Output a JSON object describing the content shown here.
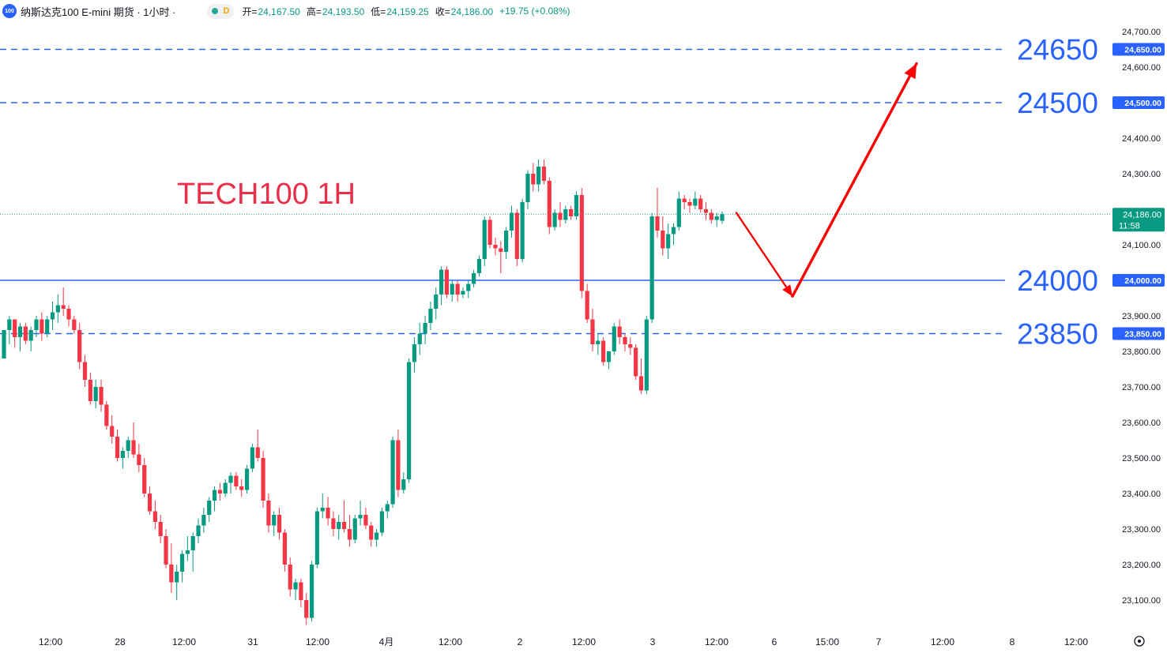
{
  "header": {
    "symbol_badge": "100",
    "symbol_title": "纳斯达克100 E-mini 期货 · 1小时 ·",
    "data_indicator": "D",
    "ohlc": [
      {
        "label": "开",
        "value": "24,167.50"
      },
      {
        "label": "高",
        "value": "24,193.50"
      },
      {
        "label": "低",
        "value": "24,159.25"
      },
      {
        "label": "收",
        "value": "24,186.00"
      }
    ],
    "change": "+19.75 (+0.08%)"
  },
  "chart_data": {
    "type": "candlestick",
    "title": "TECH100 1H",
    "price_range": [
      23030,
      24740
    ],
    "y_ticks": [
      "24,700.00",
      "24,600.00",
      "24,400.00",
      "24,300.00",
      "24,100.00",
      "23,900.00",
      "23,800.00",
      "23,700.00",
      "23,600.00",
      "23,500.00",
      "23,400.00",
      "23,300.00",
      "23,200.00",
      "23,100.00"
    ],
    "x_ticks": [
      "12:00",
      "28",
      "12:00",
      "31",
      "12:00",
      "4月",
      "12:00",
      "2",
      "12:00",
      "3",
      "12:00",
      "6",
      "15:00",
      "7",
      "12:00",
      "8",
      "12:00"
    ],
    "current_price": {
      "value": 24186,
      "label": "24,186.00",
      "countdown": "11:58"
    },
    "levels": [
      {
        "value": 24650,
        "big_label": "24650",
        "axis_label": "24,650.00",
        "style": "dashed"
      },
      {
        "value": 24500,
        "big_label": "24500",
        "axis_label": "24,500.00",
        "style": "dashed"
      },
      {
        "value": 24000,
        "big_label": "24000",
        "axis_label": "24,000.00",
        "style": "solid"
      },
      {
        "value": 23850,
        "big_label": "23850",
        "axis_label": "23,850.00",
        "style": "dashed"
      }
    ],
    "forecast_path": [
      {
        "date": "Apr 3 14:00",
        "price": 24190
      },
      {
        "date": "Apr 6 04:00",
        "price": 23955
      },
      {
        "date": "Apr 7 20:00",
        "price": 24610
      }
    ],
    "candles": [
      [
        23780,
        23860,
        23780,
        23860
      ],
      [
        23860,
        23900,
        23820,
        23890
      ],
      [
        23890,
        23890,
        23810,
        23840
      ],
      [
        23840,
        23880,
        23800,
        23870
      ],
      [
        23870,
        23880,
        23820,
        23830
      ],
      [
        23830,
        23870,
        23800,
        23860
      ],
      [
        23860,
        23900,
        23840,
        23890
      ],
      [
        23890,
        23910,
        23830,
        23850
      ],
      [
        23850,
        23900,
        23840,
        23890
      ],
      [
        23890,
        23940,
        23860,
        23910
      ],
      [
        23910,
        23960,
        23880,
        23930
      ],
      [
        23930,
        23980,
        23900,
        23920
      ],
      [
        23920,
        23930,
        23870,
        23890
      ],
      [
        23890,
        23900,
        23850,
        23860
      ],
      [
        23860,
        23880,
        23750,
        23770
      ],
      [
        23770,
        23790,
        23700,
        23720
      ],
      [
        23720,
        23740,
        23650,
        23660
      ],
      [
        23660,
        23720,
        23640,
        23700
      ],
      [
        23700,
        23720,
        23630,
        23650
      ],
      [
        23650,
        23660,
        23580,
        23590
      ],
      [
        23590,
        23620,
        23540,
        23560
      ],
      [
        23560,
        23580,
        23490,
        23500
      ],
      [
        23500,
        23530,
        23470,
        23520
      ],
      [
        23520,
        23560,
        23500,
        23550
      ],
      [
        23550,
        23600,
        23500,
        23510
      ],
      [
        23510,
        23540,
        23460,
        23480
      ],
      [
        23480,
        23500,
        23390,
        23400
      ],
      [
        23400,
        23420,
        23340,
        23350
      ],
      [
        23350,
        23380,
        23300,
        23320
      ],
      [
        23320,
        23340,
        23260,
        23280
      ],
      [
        23280,
        23300,
        23190,
        23200
      ],
      [
        23200,
        23260,
        23120,
        23150
      ],
      [
        23150,
        23200,
        23100,
        23180
      ],
      [
        23180,
        23240,
        23150,
        23230
      ],
      [
        23230,
        23280,
        23210,
        23240
      ],
      [
        23240,
        23290,
        23180,
        23280
      ],
      [
        23280,
        23330,
        23260,
        23310
      ],
      [
        23310,
        23360,
        23290,
        23340
      ],
      [
        23340,
        23390,
        23320,
        23380
      ],
      [
        23380,
        23420,
        23350,
        23410
      ],
      [
        23410,
        23430,
        23380,
        23400
      ],
      [
        23400,
        23440,
        23390,
        23430
      ],
      [
        23430,
        23460,
        23400,
        23450
      ],
      [
        23450,
        23460,
        23410,
        23420
      ],
      [
        23420,
        23440,
        23390,
        23410
      ],
      [
        23410,
        23480,
        23400,
        23470
      ],
      [
        23470,
        23540,
        23460,
        23530
      ],
      [
        23530,
        23580,
        23490,
        23500
      ],
      [
        23500,
        23520,
        23360,
        23380
      ],
      [
        23380,
        23400,
        23290,
        23310
      ],
      [
        23310,
        23350,
        23280,
        23340
      ],
      [
        23340,
        23360,
        23270,
        23290
      ],
      [
        23290,
        23300,
        23180,
        23200
      ],
      [
        23200,
        23220,
        23110,
        23130
      ],
      [
        23130,
        23160,
        23100,
        23150
      ],
      [
        23150,
        23160,
        23080,
        23100
      ],
      [
        23100,
        23120,
        23030,
        23050
      ],
      [
        23050,
        23210,
        23040,
        23200
      ],
      [
        23200,
        23360,
        23190,
        23350
      ],
      [
        23350,
        23400,
        23330,
        23360
      ],
      [
        23360,
        23390,
        23310,
        23330
      ],
      [
        23330,
        23350,
        23280,
        23300
      ],
      [
        23300,
        23340,
        23270,
        23320
      ],
      [
        23320,
        23380,
        23290,
        23300
      ],
      [
        23300,
        23340,
        23250,
        23270
      ],
      [
        23270,
        23340,
        23260,
        23330
      ],
      [
        23330,
        23380,
        23310,
        23340
      ],
      [
        23340,
        23360,
        23300,
        23310
      ],
      [
        23310,
        23320,
        23250,
        23270
      ],
      [
        23270,
        23300,
        23250,
        23290
      ],
      [
        23290,
        23360,
        23280,
        23350
      ],
      [
        23350,
        23380,
        23330,
        23370
      ],
      [
        23370,
        23560,
        23360,
        23550
      ],
      [
        23550,
        23580,
        23390,
        23410
      ],
      [
        23410,
        23460,
        23400,
        23440
      ],
      [
        23440,
        23780,
        23430,
        23770
      ],
      [
        23770,
        23840,
        23740,
        23820
      ],
      [
        23820,
        23880,
        23790,
        23850
      ],
      [
        23850,
        23900,
        23820,
        23880
      ],
      [
        23880,
        23940,
        23860,
        23920
      ],
      [
        23920,
        23980,
        23890,
        23960
      ],
      [
        23960,
        24040,
        23930,
        24030
      ],
      [
        24030,
        24040,
        23950,
        23960
      ],
      [
        23960,
        24000,
        23940,
        23990
      ],
      [
        23990,
        24000,
        23940,
        23960
      ],
      [
        23960,
        23980,
        23950,
        23970
      ],
      [
        23970,
        24000,
        23950,
        23990
      ],
      [
        23990,
        24030,
        23980,
        24020
      ],
      [
        24020,
        24070,
        24010,
        24060
      ],
      [
        24060,
        24180,
        24040,
        24170
      ],
      [
        24170,
        24180,
        24090,
        24100
      ],
      [
        24100,
        24120,
        24070,
        24090
      ],
      [
        24090,
        24110,
        24020,
        24080
      ],
      [
        24080,
        24150,
        24060,
        24140
      ],
      [
        24140,
        24210,
        24120,
        24190
      ],
      [
        24190,
        24200,
        24040,
        24060
      ],
      [
        24060,
        24230,
        24050,
        24220
      ],
      [
        24220,
        24310,
        24200,
        24300
      ],
      [
        24300,
        24330,
        24250,
        24270
      ],
      [
        24270,
        24340,
        24250,
        24320
      ],
      [
        24320,
        24340,
        24270,
        24280
      ],
      [
        24280,
        24290,
        24130,
        24150
      ],
      [
        24150,
        24200,
        24140,
        24190
      ],
      [
        24190,
        24220,
        24150,
        24170
      ],
      [
        24170,
        24210,
        24160,
        24200
      ],
      [
        24200,
        24210,
        24170,
        24180
      ],
      [
        24180,
        24250,
        24170,
        24240
      ],
      [
        24240,
        24260,
        23950,
        23970
      ],
      [
        23970,
        23990,
        23880,
        23890
      ],
      [
        23890,
        23920,
        23800,
        23820
      ],
      [
        23820,
        23850,
        23790,
        23830
      ],
      [
        23830,
        23840,
        23760,
        23770
      ],
      [
        23770,
        23800,
        23750,
        23800
      ],
      [
        23800,
        23880,
        23790,
        23870
      ],
      [
        23870,
        23890,
        23820,
        23840
      ],
      [
        23840,
        23850,
        23800,
        23820
      ],
      [
        23820,
        23840,
        23790,
        23810
      ],
      [
        23810,
        23820,
        23720,
        23730
      ],
      [
        23730,
        23780,
        23680,
        23690
      ],
      [
        23690,
        23900,
        23680,
        23890
      ],
      [
        23890,
        24190,
        23880,
        24180
      ],
      [
        24180,
        24260,
        24120,
        24140
      ],
      [
        24140,
        24180,
        24070,
        24090
      ],
      [
        24090,
        24160,
        24060,
        24130
      ],
      [
        24130,
        24160,
        24100,
        24150
      ],
      [
        24150,
        24250,
        24140,
        24230
      ],
      [
        24230,
        24240,
        24200,
        24220
      ],
      [
        24220,
        24230,
        24190,
        24210
      ],
      [
        24210,
        24250,
        24200,
        24230
      ],
      [
        24230,
        24240,
        24190,
        24200
      ],
      [
        24200,
        24220,
        24170,
        24190
      ],
      [
        24190,
        24200,
        24160,
        24170
      ],
      [
        24170,
        24190,
        24150,
        24180
      ],
      [
        24167.5,
        24193.5,
        24159.25,
        24186
      ]
    ]
  }
}
